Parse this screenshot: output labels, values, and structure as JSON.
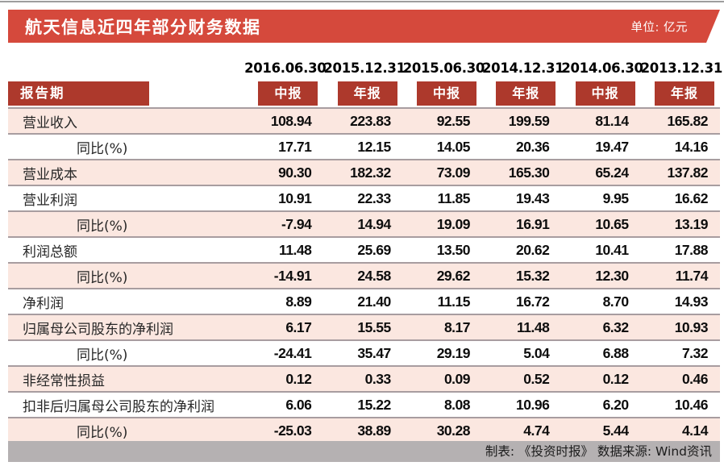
{
  "page": {
    "title": "航天信息近四年部分财务数据",
    "unit_label": "单位: 亿元",
    "footer_credit": "制表: 《投资时报》  数据来源: Wind资讯"
  },
  "chart_data": {
    "type": "table",
    "title": "航天信息近四年部分财务数据",
    "unit": "亿元",
    "row_header_label": "报告期",
    "report_dates": [
      "2016.06.30",
      "2015.12.31",
      "2015.06.30",
      "2014.12.31",
      "2014.06.30",
      "2013.12.31"
    ],
    "report_types": [
      "中报",
      "年报",
      "中报",
      "年报",
      "中报",
      "年报"
    ],
    "rows": [
      {
        "label": "营业收入",
        "indent": false,
        "values": [
          "108.94",
          "223.83",
          "92.55",
          "199.59",
          "81.14",
          "165.82"
        ]
      },
      {
        "label": "同比(%)",
        "indent": true,
        "values": [
          "17.71",
          "12.15",
          "14.05",
          "20.36",
          "19.47",
          "14.16"
        ]
      },
      {
        "label": "营业成本",
        "indent": false,
        "values": [
          "90.30",
          "182.32",
          "73.09",
          "165.30",
          "65.24",
          "137.82"
        ]
      },
      {
        "label": "营业利润",
        "indent": false,
        "values": [
          "10.91",
          "22.33",
          "11.85",
          "19.43",
          "9.95",
          "16.62"
        ]
      },
      {
        "label": "同比(%)",
        "indent": true,
        "values": [
          "-7.94",
          "14.94",
          "19.09",
          "16.91",
          "10.65",
          "13.19"
        ]
      },
      {
        "label": "利润总额",
        "indent": false,
        "values": [
          "11.48",
          "25.69",
          "13.50",
          "20.62",
          "10.41",
          "17.88"
        ]
      },
      {
        "label": "同比(%)",
        "indent": true,
        "values": [
          "-14.91",
          "24.58",
          "29.62",
          "15.32",
          "12.30",
          "11.74"
        ]
      },
      {
        "label": "净利润",
        "indent": false,
        "values": [
          "8.89",
          "21.40",
          "11.15",
          "16.72",
          "8.70",
          "14.93"
        ]
      },
      {
        "label": "归属母公司股东的净利润",
        "indent": false,
        "values": [
          "6.17",
          "15.55",
          "8.17",
          "11.48",
          "6.32",
          "10.93"
        ]
      },
      {
        "label": "同比(%)",
        "indent": true,
        "values": [
          "-24.41",
          "35.47",
          "29.19",
          "5.04",
          "6.88",
          "7.32"
        ]
      },
      {
        "label": "非经常性损益",
        "indent": false,
        "values": [
          "0.12",
          "0.33",
          "0.09",
          "0.52",
          "0.12",
          "0.46"
        ]
      },
      {
        "label": "扣非后归属母公司股东的净利润",
        "indent": false,
        "values": [
          "6.06",
          "15.22",
          "8.08",
          "10.96",
          "6.20",
          "10.46"
        ]
      },
      {
        "label": "同比(%)",
        "indent": true,
        "values": [
          "-25.03",
          "38.89",
          "30.28",
          "4.74",
          "5.44",
          "4.14"
        ]
      }
    ]
  },
  "colors": {
    "title_bar_red": "#d5493c",
    "badge_dark_red": "#ad392c",
    "row_pink": "#fbe7e0",
    "separator_gray": "#a89da0",
    "footer_gray": "#b5b1b2"
  }
}
